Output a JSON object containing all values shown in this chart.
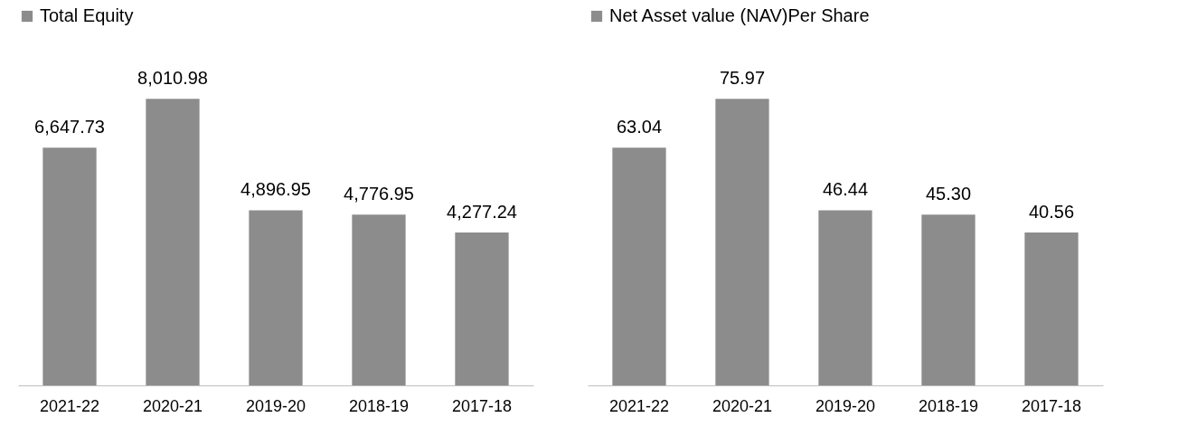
{
  "chart_data": [
    {
      "type": "bar",
      "categories": [
        "2021-22",
        "2020-21",
        "2019-20",
        "2018-19",
        "2017-18"
      ],
      "series": [
        {
          "name": "Total Equity",
          "color": "#8c8c8c",
          "values": [
            6647.73,
            8010.98,
            4896.95,
            4776.95,
            4277.24
          ],
          "value_labels": [
            "6,647.73",
            "8,010.98",
            "4,896.95",
            "4,776.95",
            "4,277.24"
          ]
        }
      ],
      "legend": "top",
      "grid": false
    },
    {
      "type": "bar",
      "categories": [
        "2021-22",
        "2020-21",
        "2019-20",
        "2018-19",
        "2017-18"
      ],
      "series": [
        {
          "name": "Net Asset value (NAV)Per Share",
          "color": "#8c8c8c",
          "values": [
            63.04,
            75.97,
            46.44,
            45.3,
            40.56
          ],
          "value_labels": [
            "63.04",
            "75.97",
            "46.44",
            "45.30",
            "40.56"
          ]
        }
      ],
      "legend": "top",
      "grid": false
    }
  ]
}
